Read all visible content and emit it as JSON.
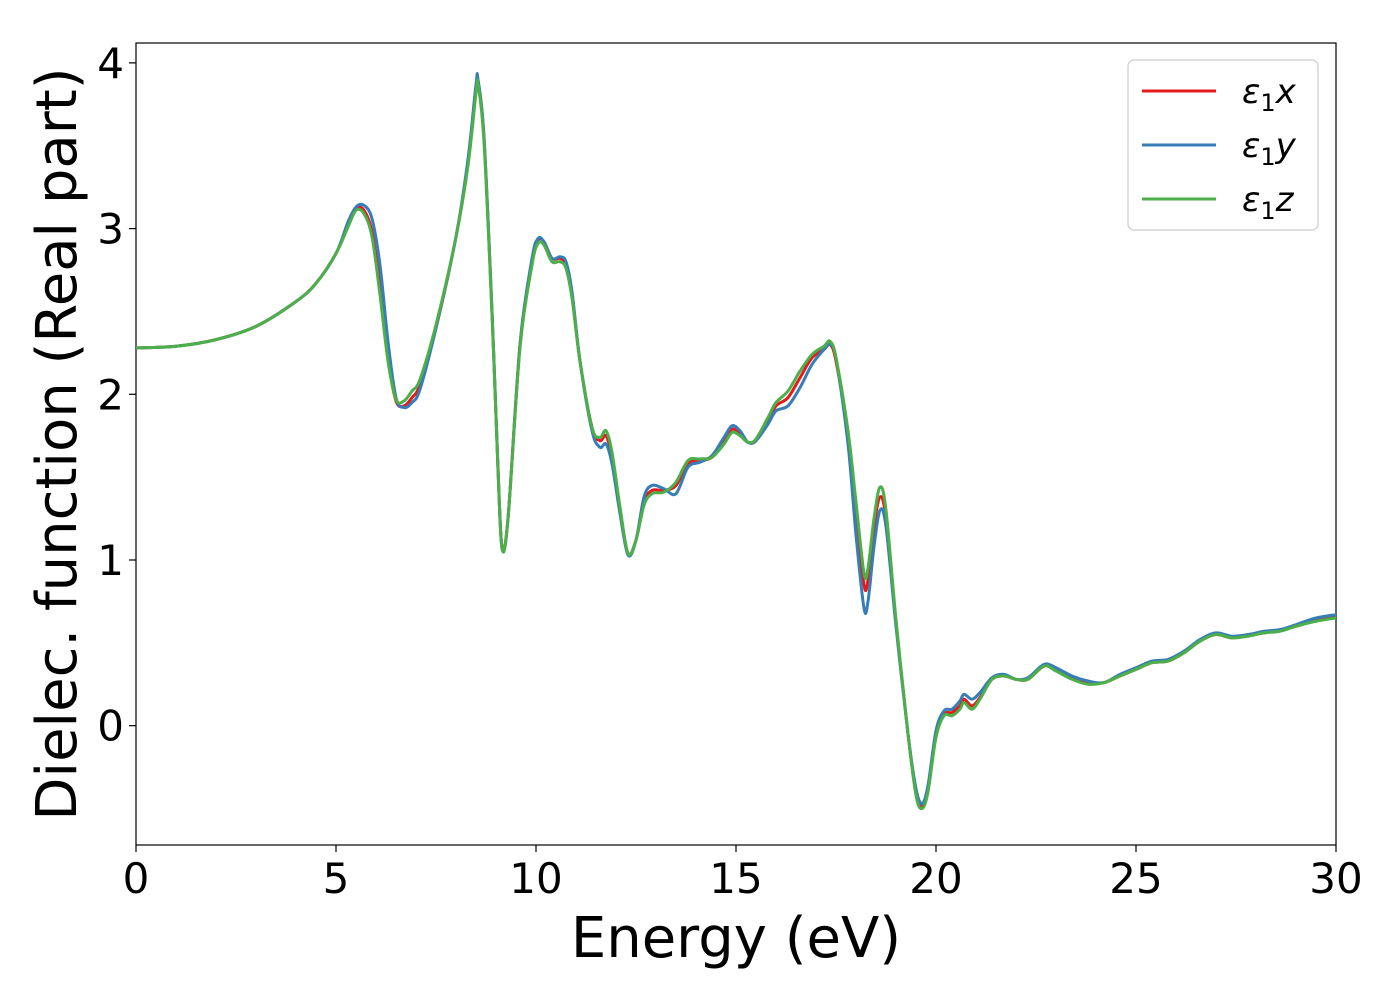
{
  "chart_data": {
    "type": "line",
    "title": "",
    "xlabel": "Energy (eV)",
    "ylabel": "Dielec. function (Real part)",
    "xlim": [
      0,
      30
    ],
    "ylim": [
      -0.72,
      4.12
    ],
    "xticks": [
      0,
      5,
      10,
      15,
      20,
      25,
      30
    ],
    "yticks": [
      0,
      1,
      2,
      3,
      4
    ],
    "grid": false,
    "legend_position": "top-right",
    "series": [
      {
        "name": "ε1x",
        "legend_base": "ε",
        "legend_sub": "1",
        "legend_var": "x",
        "color": "#e41a1c",
        "points": [
          [
            0,
            2.28
          ],
          [
            1,
            2.29
          ],
          [
            2,
            2.33
          ],
          [
            3,
            2.41
          ],
          [
            4,
            2.56
          ],
          [
            4.5,
            2.67
          ],
          [
            5,
            2.85
          ],
          [
            5.3,
            3.02
          ],
          [
            5.5,
            3.12
          ],
          [
            5.7,
            3.11
          ],
          [
            5.9,
            2.98
          ],
          [
            6.1,
            2.65
          ],
          [
            6.3,
            2.22
          ],
          [
            6.5,
            1.96
          ],
          [
            6.7,
            1.93
          ],
          [
            6.9,
            1.98
          ],
          [
            7.1,
            2.06
          ],
          [
            7.5,
            2.4
          ],
          [
            8.0,
            2.95
          ],
          [
            8.3,
            3.4
          ],
          [
            8.5,
            3.85
          ],
          [
            8.55,
            3.89
          ],
          [
            8.7,
            3.55
          ],
          [
            8.9,
            2.5
          ],
          [
            9.05,
            1.55
          ],
          [
            9.15,
            1.08
          ],
          [
            9.3,
            1.25
          ],
          [
            9.6,
            2.3
          ],
          [
            9.9,
            2.8
          ],
          [
            10.05,
            2.93
          ],
          [
            10.2,
            2.92
          ],
          [
            10.4,
            2.82
          ],
          [
            10.6,
            2.82
          ],
          [
            10.75,
            2.78
          ],
          [
            10.9,
            2.6
          ],
          [
            11.1,
            2.2
          ],
          [
            11.4,
            1.8
          ],
          [
            11.6,
            1.72
          ],
          [
            11.75,
            1.75
          ],
          [
            11.9,
            1.62
          ],
          [
            12.1,
            1.3
          ],
          [
            12.3,
            1.04
          ],
          [
            12.5,
            1.12
          ],
          [
            12.7,
            1.35
          ],
          [
            12.9,
            1.42
          ],
          [
            13.2,
            1.42
          ],
          [
            13.5,
            1.45
          ],
          [
            13.8,
            1.58
          ],
          [
            14.1,
            1.6
          ],
          [
            14.4,
            1.62
          ],
          [
            14.7,
            1.72
          ],
          [
            14.9,
            1.79
          ],
          [
            15.1,
            1.76
          ],
          [
            15.3,
            1.71
          ],
          [
            15.5,
            1.72
          ],
          [
            15.8,
            1.84
          ],
          [
            16.0,
            1.93
          ],
          [
            16.3,
            1.98
          ],
          [
            16.6,
            2.1
          ],
          [
            16.9,
            2.22
          ],
          [
            17.2,
            2.27
          ],
          [
            17.35,
            2.3
          ],
          [
            17.5,
            2.2
          ],
          [
            17.8,
            1.75
          ],
          [
            18.0,
            1.28
          ],
          [
            18.2,
            0.85
          ],
          [
            18.3,
            0.88
          ],
          [
            18.45,
            1.2
          ],
          [
            18.6,
            1.38
          ],
          [
            18.75,
            1.25
          ],
          [
            19.0,
            0.62
          ],
          [
            19.3,
            -0.05
          ],
          [
            19.5,
            -0.4
          ],
          [
            19.65,
            -0.49
          ],
          [
            19.8,
            -0.38
          ],
          [
            20.0,
            -0.05
          ],
          [
            20.2,
            0.07
          ],
          [
            20.4,
            0.08
          ],
          [
            20.6,
            0.12
          ],
          [
            20.7,
            0.16
          ],
          [
            20.9,
            0.12
          ],
          [
            21.1,
            0.17
          ],
          [
            21.4,
            0.28
          ],
          [
            21.7,
            0.3
          ],
          [
            22.0,
            0.28
          ],
          [
            22.3,
            0.28
          ],
          [
            22.7,
            0.36
          ],
          [
            23.0,
            0.34
          ],
          [
            23.4,
            0.29
          ],
          [
            23.8,
            0.26
          ],
          [
            24.2,
            0.26
          ],
          [
            24.6,
            0.3
          ],
          [
            25.0,
            0.34
          ],
          [
            25.4,
            0.38
          ],
          [
            25.8,
            0.39
          ],
          [
            26.2,
            0.44
          ],
          [
            26.6,
            0.51
          ],
          [
            27.0,
            0.55
          ],
          [
            27.4,
            0.53
          ],
          [
            27.8,
            0.55
          ],
          [
            28.2,
            0.56
          ],
          [
            28.6,
            0.58
          ],
          [
            29.0,
            0.6
          ],
          [
            29.5,
            0.64
          ],
          [
            30.0,
            0.66
          ]
        ]
      },
      {
        "name": "ε1y",
        "legend_base": "ε",
        "legend_sub": "1",
        "legend_var": "y",
        "color": "#377eb8",
        "points": [
          [
            0,
            2.28
          ],
          [
            1,
            2.29
          ],
          [
            2,
            2.33
          ],
          [
            3,
            2.41
          ],
          [
            4,
            2.56
          ],
          [
            4.5,
            2.67
          ],
          [
            5,
            2.85
          ],
          [
            5.3,
            3.04
          ],
          [
            5.5,
            3.13
          ],
          [
            5.7,
            3.14
          ],
          [
            5.9,
            3.06
          ],
          [
            6.1,
            2.78
          ],
          [
            6.3,
            2.32
          ],
          [
            6.5,
            1.98
          ],
          [
            6.7,
            1.92
          ],
          [
            6.9,
            1.95
          ],
          [
            7.1,
            2.03
          ],
          [
            7.5,
            2.4
          ],
          [
            8.0,
            2.95
          ],
          [
            8.3,
            3.42
          ],
          [
            8.5,
            3.87
          ],
          [
            8.55,
            3.9
          ],
          [
            8.7,
            3.55
          ],
          [
            8.9,
            2.5
          ],
          [
            9.05,
            1.55
          ],
          [
            9.15,
            1.07
          ],
          [
            9.3,
            1.25
          ],
          [
            9.6,
            2.3
          ],
          [
            9.9,
            2.82
          ],
          [
            10.05,
            2.94
          ],
          [
            10.2,
            2.92
          ],
          [
            10.4,
            2.82
          ],
          [
            10.6,
            2.83
          ],
          [
            10.75,
            2.8
          ],
          [
            10.9,
            2.62
          ],
          [
            11.1,
            2.2
          ],
          [
            11.4,
            1.78
          ],
          [
            11.6,
            1.68
          ],
          [
            11.75,
            1.7
          ],
          [
            11.9,
            1.58
          ],
          [
            12.1,
            1.28
          ],
          [
            12.3,
            1.03
          ],
          [
            12.5,
            1.12
          ],
          [
            12.7,
            1.38
          ],
          [
            12.9,
            1.45
          ],
          [
            13.2,
            1.43
          ],
          [
            13.5,
            1.4
          ],
          [
            13.8,
            1.56
          ],
          [
            14.1,
            1.59
          ],
          [
            14.4,
            1.63
          ],
          [
            14.7,
            1.74
          ],
          [
            14.9,
            1.81
          ],
          [
            15.1,
            1.78
          ],
          [
            15.3,
            1.71
          ],
          [
            15.5,
            1.72
          ],
          [
            15.8,
            1.82
          ],
          [
            16.0,
            1.9
          ],
          [
            16.3,
            1.93
          ],
          [
            16.6,
            2.04
          ],
          [
            16.9,
            2.18
          ],
          [
            17.2,
            2.27
          ],
          [
            17.35,
            2.3
          ],
          [
            17.5,
            2.22
          ],
          [
            17.8,
            1.7
          ],
          [
            18.0,
            1.15
          ],
          [
            18.2,
            0.71
          ],
          [
            18.3,
            0.75
          ],
          [
            18.45,
            1.08
          ],
          [
            18.6,
            1.3
          ],
          [
            18.75,
            1.2
          ],
          [
            19.0,
            0.6
          ],
          [
            19.3,
            -0.05
          ],
          [
            19.5,
            -0.38
          ],
          [
            19.65,
            -0.47
          ],
          [
            19.8,
            -0.36
          ],
          [
            20.0,
            -0.03
          ],
          [
            20.2,
            0.09
          ],
          [
            20.4,
            0.1
          ],
          [
            20.6,
            0.15
          ],
          [
            20.7,
            0.19
          ],
          [
            20.9,
            0.16
          ],
          [
            21.1,
            0.2
          ],
          [
            21.4,
            0.29
          ],
          [
            21.7,
            0.31
          ],
          [
            22.0,
            0.28
          ],
          [
            22.3,
            0.29
          ],
          [
            22.7,
            0.37
          ],
          [
            23.0,
            0.35
          ],
          [
            23.4,
            0.3
          ],
          [
            23.8,
            0.27
          ],
          [
            24.2,
            0.26
          ],
          [
            24.6,
            0.31
          ],
          [
            25.0,
            0.35
          ],
          [
            25.4,
            0.39
          ],
          [
            25.8,
            0.4
          ],
          [
            26.2,
            0.45
          ],
          [
            26.6,
            0.52
          ],
          [
            27.0,
            0.56
          ],
          [
            27.4,
            0.54
          ],
          [
            27.8,
            0.55
          ],
          [
            28.2,
            0.57
          ],
          [
            28.6,
            0.58
          ],
          [
            29.0,
            0.61
          ],
          [
            29.5,
            0.65
          ],
          [
            30.0,
            0.67
          ]
        ]
      },
      {
        "name": "ε1z",
        "legend_base": "ε",
        "legend_sub": "1",
        "legend_var": "z",
        "color": "#4daf4a",
        "points": [
          [
            0,
            2.28
          ],
          [
            1,
            2.29
          ],
          [
            2,
            2.33
          ],
          [
            3,
            2.41
          ],
          [
            4,
            2.56
          ],
          [
            4.5,
            2.67
          ],
          [
            5,
            2.85
          ],
          [
            5.3,
            3.01
          ],
          [
            5.5,
            3.11
          ],
          [
            5.7,
            3.09
          ],
          [
            5.9,
            2.95
          ],
          [
            6.1,
            2.6
          ],
          [
            6.3,
            2.2
          ],
          [
            6.5,
            1.97
          ],
          [
            6.7,
            1.96
          ],
          [
            6.9,
            2.02
          ],
          [
            7.1,
            2.09
          ],
          [
            7.5,
            2.42
          ],
          [
            8.0,
            2.95
          ],
          [
            8.3,
            3.38
          ],
          [
            8.5,
            3.82
          ],
          [
            8.55,
            3.87
          ],
          [
            8.7,
            3.52
          ],
          [
            8.9,
            2.48
          ],
          [
            9.05,
            1.55
          ],
          [
            9.15,
            1.07
          ],
          [
            9.3,
            1.25
          ],
          [
            9.6,
            2.28
          ],
          [
            9.9,
            2.78
          ],
          [
            10.05,
            2.91
          ],
          [
            10.2,
            2.9
          ],
          [
            10.4,
            2.8
          ],
          [
            10.6,
            2.8
          ],
          [
            10.75,
            2.76
          ],
          [
            10.9,
            2.58
          ],
          [
            11.1,
            2.2
          ],
          [
            11.4,
            1.8
          ],
          [
            11.6,
            1.74
          ],
          [
            11.75,
            1.78
          ],
          [
            11.9,
            1.65
          ],
          [
            12.1,
            1.32
          ],
          [
            12.3,
            1.04
          ],
          [
            12.5,
            1.12
          ],
          [
            12.7,
            1.33
          ],
          [
            12.9,
            1.4
          ],
          [
            13.2,
            1.41
          ],
          [
            13.5,
            1.47
          ],
          [
            13.8,
            1.6
          ],
          [
            14.1,
            1.61
          ],
          [
            14.4,
            1.62
          ],
          [
            14.7,
            1.7
          ],
          [
            14.9,
            1.77
          ],
          [
            15.1,
            1.75
          ],
          [
            15.3,
            1.71
          ],
          [
            15.5,
            1.73
          ],
          [
            15.8,
            1.86
          ],
          [
            16.0,
            1.95
          ],
          [
            16.3,
            2.02
          ],
          [
            16.6,
            2.14
          ],
          [
            16.9,
            2.24
          ],
          [
            17.2,
            2.29
          ],
          [
            17.35,
            2.32
          ],
          [
            17.5,
            2.22
          ],
          [
            17.8,
            1.78
          ],
          [
            18.0,
            1.35
          ],
          [
            18.2,
            0.92
          ],
          [
            18.3,
            0.95
          ],
          [
            18.45,
            1.25
          ],
          [
            18.6,
            1.44
          ],
          [
            18.75,
            1.3
          ],
          [
            19.0,
            0.64
          ],
          [
            19.3,
            -0.05
          ],
          [
            19.5,
            -0.42
          ],
          [
            19.65,
            -0.5
          ],
          [
            19.8,
            -0.4
          ],
          [
            20.0,
            -0.07
          ],
          [
            20.2,
            0.06
          ],
          [
            20.4,
            0.06
          ],
          [
            20.6,
            0.1
          ],
          [
            20.7,
            0.14
          ],
          [
            20.9,
            0.1
          ],
          [
            21.1,
            0.16
          ],
          [
            21.4,
            0.28
          ],
          [
            21.7,
            0.3
          ],
          [
            22.0,
            0.28
          ],
          [
            22.3,
            0.28
          ],
          [
            22.7,
            0.36
          ],
          [
            23.0,
            0.33
          ],
          [
            23.4,
            0.28
          ],
          [
            23.8,
            0.25
          ],
          [
            24.2,
            0.26
          ],
          [
            24.6,
            0.3
          ],
          [
            25.0,
            0.34
          ],
          [
            25.4,
            0.38
          ],
          [
            25.8,
            0.39
          ],
          [
            26.2,
            0.44
          ],
          [
            26.6,
            0.51
          ],
          [
            27.0,
            0.55
          ],
          [
            27.4,
            0.53
          ],
          [
            27.8,
            0.54
          ],
          [
            28.2,
            0.56
          ],
          [
            28.6,
            0.57
          ],
          [
            29.0,
            0.6
          ],
          [
            29.5,
            0.63
          ],
          [
            30.0,
            0.65
          ]
        ]
      }
    ]
  }
}
